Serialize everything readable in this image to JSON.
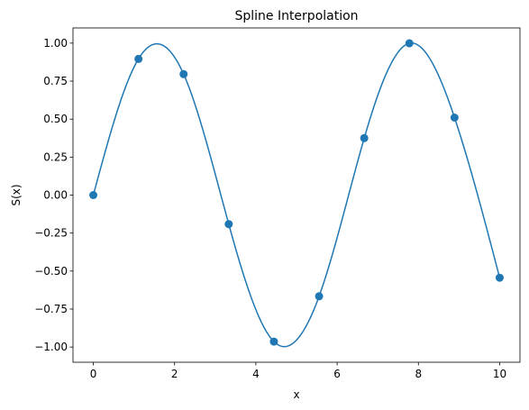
{
  "chart_data": {
    "type": "line",
    "title": "Spline Interpolation",
    "xlabel": "x",
    "ylabel": "S(x)",
    "xlim": [
      -0.5,
      10.5
    ],
    "ylim": [
      -1.1,
      1.1
    ],
    "xticks": [
      0,
      2,
      4,
      6,
      8,
      10
    ],
    "yticks": [
      -1.0,
      -0.75,
      -0.5,
      -0.25,
      0.0,
      0.25,
      0.5,
      0.75,
      1.0
    ],
    "xtick_labels": [
      "0",
      "2",
      "4",
      "6",
      "8",
      "10"
    ],
    "ytick_labels": [
      "−1.00",
      "−0.75",
      "−0.50",
      "−0.25",
      "0.00",
      "0.25",
      "0.50",
      "0.75",
      "1.00"
    ],
    "grid": false,
    "legend": "none",
    "series": [
      {
        "kind": "scatter",
        "color": "#1f77b4",
        "x": [
          0.0,
          1.111,
          2.222,
          3.333,
          4.444,
          5.556,
          6.667,
          7.778,
          8.889,
          10.0
        ],
        "y": [
          0.0,
          0.896,
          0.796,
          -0.191,
          -0.964,
          -0.666,
          0.375,
          0.999,
          0.51,
          -0.544
        ]
      },
      {
        "kind": "line",
        "color": "#1f77b4",
        "note_source": "interpolating cubic spline through the scatter points"
      }
    ]
  }
}
